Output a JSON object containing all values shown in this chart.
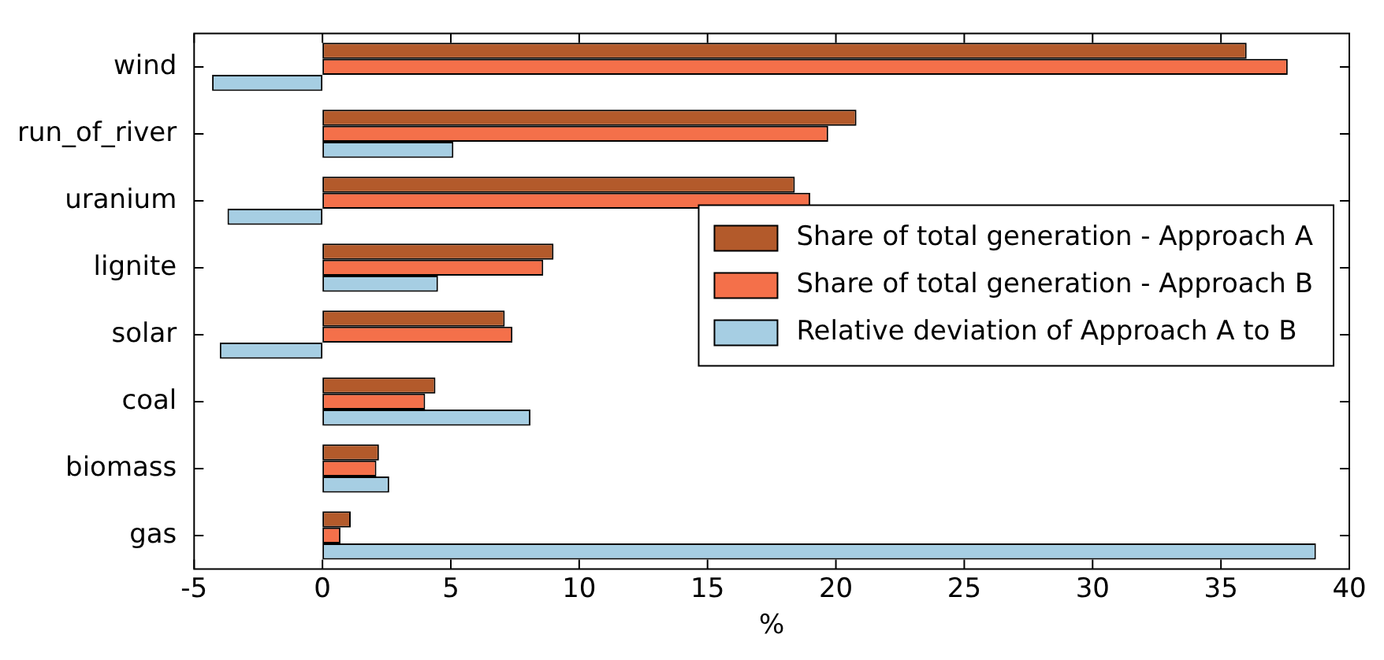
{
  "chart_data": {
    "type": "bar",
    "orientation": "horizontal",
    "xlabel": "%",
    "categories": [
      "wind",
      "run_of_river",
      "uranium",
      "lignite",
      "solar",
      "coal",
      "biomass",
      "gas"
    ],
    "series": [
      {
        "name": "Share of total generation - Approach A",
        "color": "#b35a2b",
        "values": [
          36.0,
          20.8,
          18.4,
          9.0,
          7.1,
          4.4,
          2.2,
          1.1
        ]
      },
      {
        "name": "Share of total generation - Approach B",
        "color": "#f4704a",
        "values": [
          37.6,
          19.7,
          19.0,
          8.6,
          7.4,
          4.0,
          2.1,
          0.7
        ]
      },
      {
        "name": "Relative deviation of Approach A to B",
        "color": "#a6cee3",
        "values": [
          -4.3,
          5.1,
          -3.7,
          4.5,
          -4.0,
          8.1,
          2.6,
          38.7
        ]
      }
    ],
    "xlim": [
      -5,
      40
    ],
    "xticks": [
      -5,
      0,
      5,
      10,
      15,
      20,
      25,
      30,
      35,
      40
    ],
    "grid": false,
    "legend": "right"
  }
}
